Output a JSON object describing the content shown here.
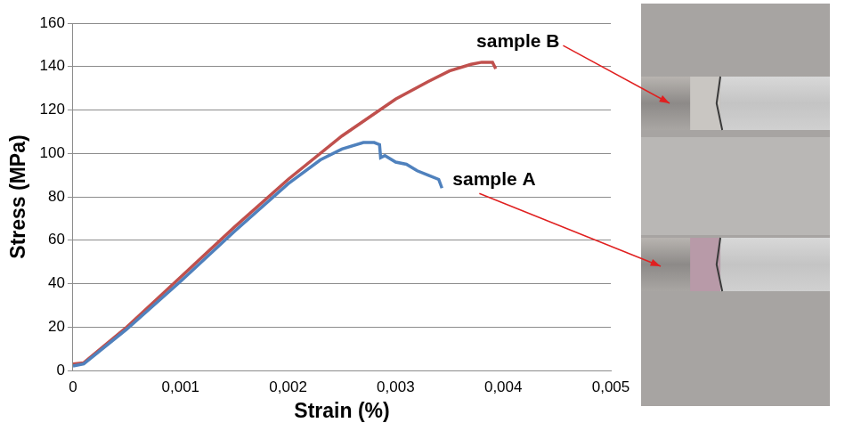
{
  "chart_data": {
    "type": "line",
    "xlabel": "Strain (%)",
    "ylabel": "Stress (MPa)",
    "xlim": [
      0,
      0.005
    ],
    "xticks": [
      0,
      {
        "value": 0.001,
        "label": "0,001"
      },
      {
        "value": 0.002,
        "label": "0,002"
      },
      {
        "value": 0.003,
        "label": "0,003"
      },
      {
        "value": 0.004,
        "label": "0,004"
      },
      {
        "value": 0.005,
        "label": "0,005"
      }
    ],
    "ylim": [
      0,
      160
    ],
    "yticks": [
      0,
      20,
      40,
      60,
      80,
      100,
      120,
      140,
      160
    ],
    "grid": "y",
    "series": [
      {
        "name": "sample A",
        "color": "#4f81bd",
        "x": [
          0,
          0.0001,
          0.0005,
          0.001,
          0.0015,
          0.002,
          0.0023,
          0.0025,
          0.0027,
          0.0028,
          0.00285,
          0.00286,
          0.0029,
          0.003,
          0.0031,
          0.0032,
          0.0033,
          0.0034,
          0.00343
        ],
        "values": [
          2,
          3,
          19,
          41,
          64,
          86,
          97,
          102,
          105,
          105,
          104,
          98,
          99,
          96,
          95,
          92,
          90,
          88,
          84
        ]
      },
      {
        "name": "sample B",
        "color": "#c0504d",
        "x": [
          0,
          0.0001,
          0.0005,
          0.001,
          0.0015,
          0.002,
          0.0025,
          0.003,
          0.0033,
          0.0035,
          0.0037,
          0.0038,
          0.0039,
          0.00393
        ],
        "values": [
          3,
          3.5,
          20,
          43,
          66,
          88,
          108,
          125,
          133,
          138,
          141,
          142,
          142,
          139
        ]
      }
    ]
  }
}
